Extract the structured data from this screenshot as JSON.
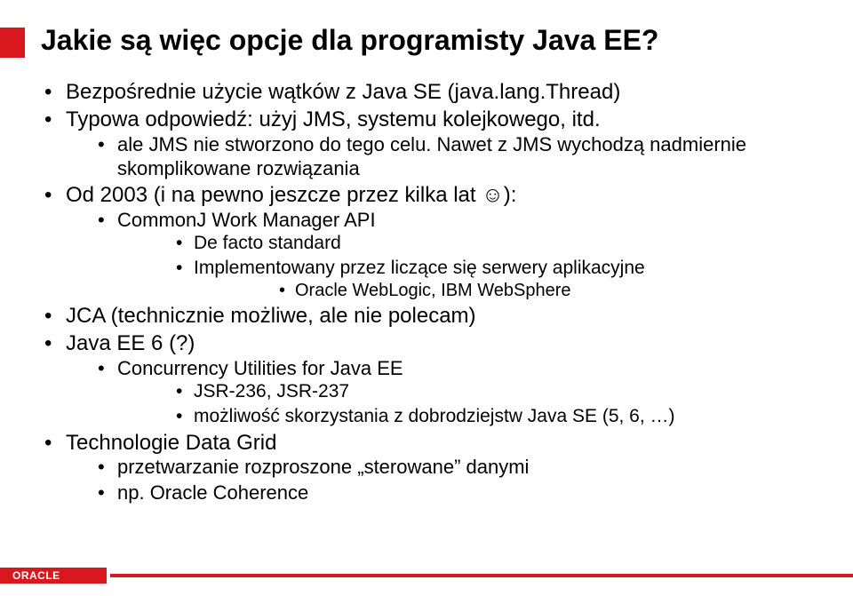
{
  "colors": {
    "accent": "#d8171e",
    "title_text": "#000000",
    "body_text": "#000000",
    "footer_text": "#ffffff",
    "footer_line": "#d8171e",
    "background": "#ffffff"
  },
  "sizes": {
    "title_font_pt": 32,
    "lvl1_font_pt": 24,
    "lvl2_font_pt": 22,
    "lvl3_font_pt": 21,
    "lvl4_font_pt": 20,
    "lvl5_font_pt": 19,
    "footer_font_pt": 12,
    "accent_block_w": 28,
    "accent_block_h": 34,
    "footer_red_w": 120
  },
  "title": "Jakie są więc opcje dla programisty Java EE?",
  "bullets": {
    "b1": "Bezpośrednie użycie wątków z Java SE (java.lang.Thread)",
    "b2": "Typowa odpowiedź: użyj JMS, systemu kolejkowego, itd.",
    "b2a": "ale JMS nie stworzono do tego celu. Nawet z JMS wychodzą nadmiernie skomplikowane rozwiązania",
    "b3": "Od 2003 (i na pewno jeszcze przez kilka lat ☺):",
    "b3a": "CommonJ Work Manager API",
    "b3a1": "De facto standard",
    "b3a2": "Implementowany przez liczące się serwery aplikacyjne",
    "b3a2a": "Oracle WebLogic, IBM WebSphere",
    "b4": "JCA (technicznie możliwe, ale nie polecam)",
    "b5": "Java EE 6 (?)",
    "b5a": "Concurrency Utilities for Java EE",
    "b5a1": "JSR-236, JSR-237",
    "b5a2": "możliwość skorzystania z dobrodziejstw Java SE (5, 6, …)",
    "b6": "Technologie Data Grid",
    "b6a": "przetwarzanie rozproszone „sterowane” danymi",
    "b6b": "np. Oracle Coherence"
  },
  "footer": {
    "brand": "ORACLE"
  }
}
